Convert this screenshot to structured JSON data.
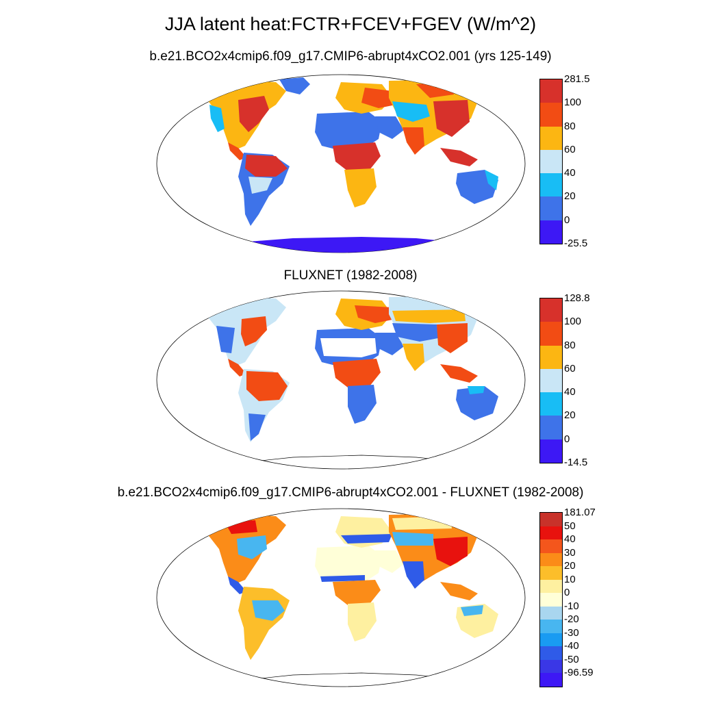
{
  "title": "JJA latent heat:FCTR+FCEV+FGEV (W/m^2)",
  "panels": [
    {
      "subtitle": "b.e21.BCO2x4cmip6.f09_g17.CMIP6-abrupt4xCO2.001 (yrs 125-149)",
      "colorbar": {
        "labels": [
          "281.5",
          "100",
          "80",
          "60",
          "40",
          "20",
          "0",
          "-25.5"
        ],
        "colors": [
          "#d7312b",
          "#f24c14",
          "#fcb612",
          "#c9e6f6",
          "#18bdf5",
          "#3e73e9",
          "#3d18f5"
        ]
      }
    },
    {
      "subtitle": "FLUXNET (1982-2008)",
      "colorbar": {
        "labels": [
          "128.8",
          "100",
          "80",
          "60",
          "40",
          "20",
          "0",
          "-14.5"
        ],
        "colors": [
          "#d7312b",
          "#f24c14",
          "#fcb612",
          "#c9e6f6",
          "#18bdf5",
          "#3e73e9",
          "#3d18f5"
        ]
      }
    },
    {
      "subtitle": "b.e21.BCO2x4cmip6.f09_g17.CMIP6-abrupt4xCO2.001 - FLUXNET (1982-2008)",
      "colorbar": {
        "labels": [
          "181.07",
          "50",
          "40",
          "30",
          "20",
          "10",
          "0",
          "-10",
          "-20",
          "-30",
          "-40",
          "-50",
          "-96.59"
        ],
        "colors": [
          "#c8322a",
          "#e8120e",
          "#f4561c",
          "#fb8c18",
          "#fcbe2a",
          "#fef0a0",
          "#ffffd8",
          "#a9d6ef",
          "#48b6f0",
          "#199bf2",
          "#2f5be8",
          "#3a37e6",
          "#3d18f5"
        ]
      }
    }
  ]
}
